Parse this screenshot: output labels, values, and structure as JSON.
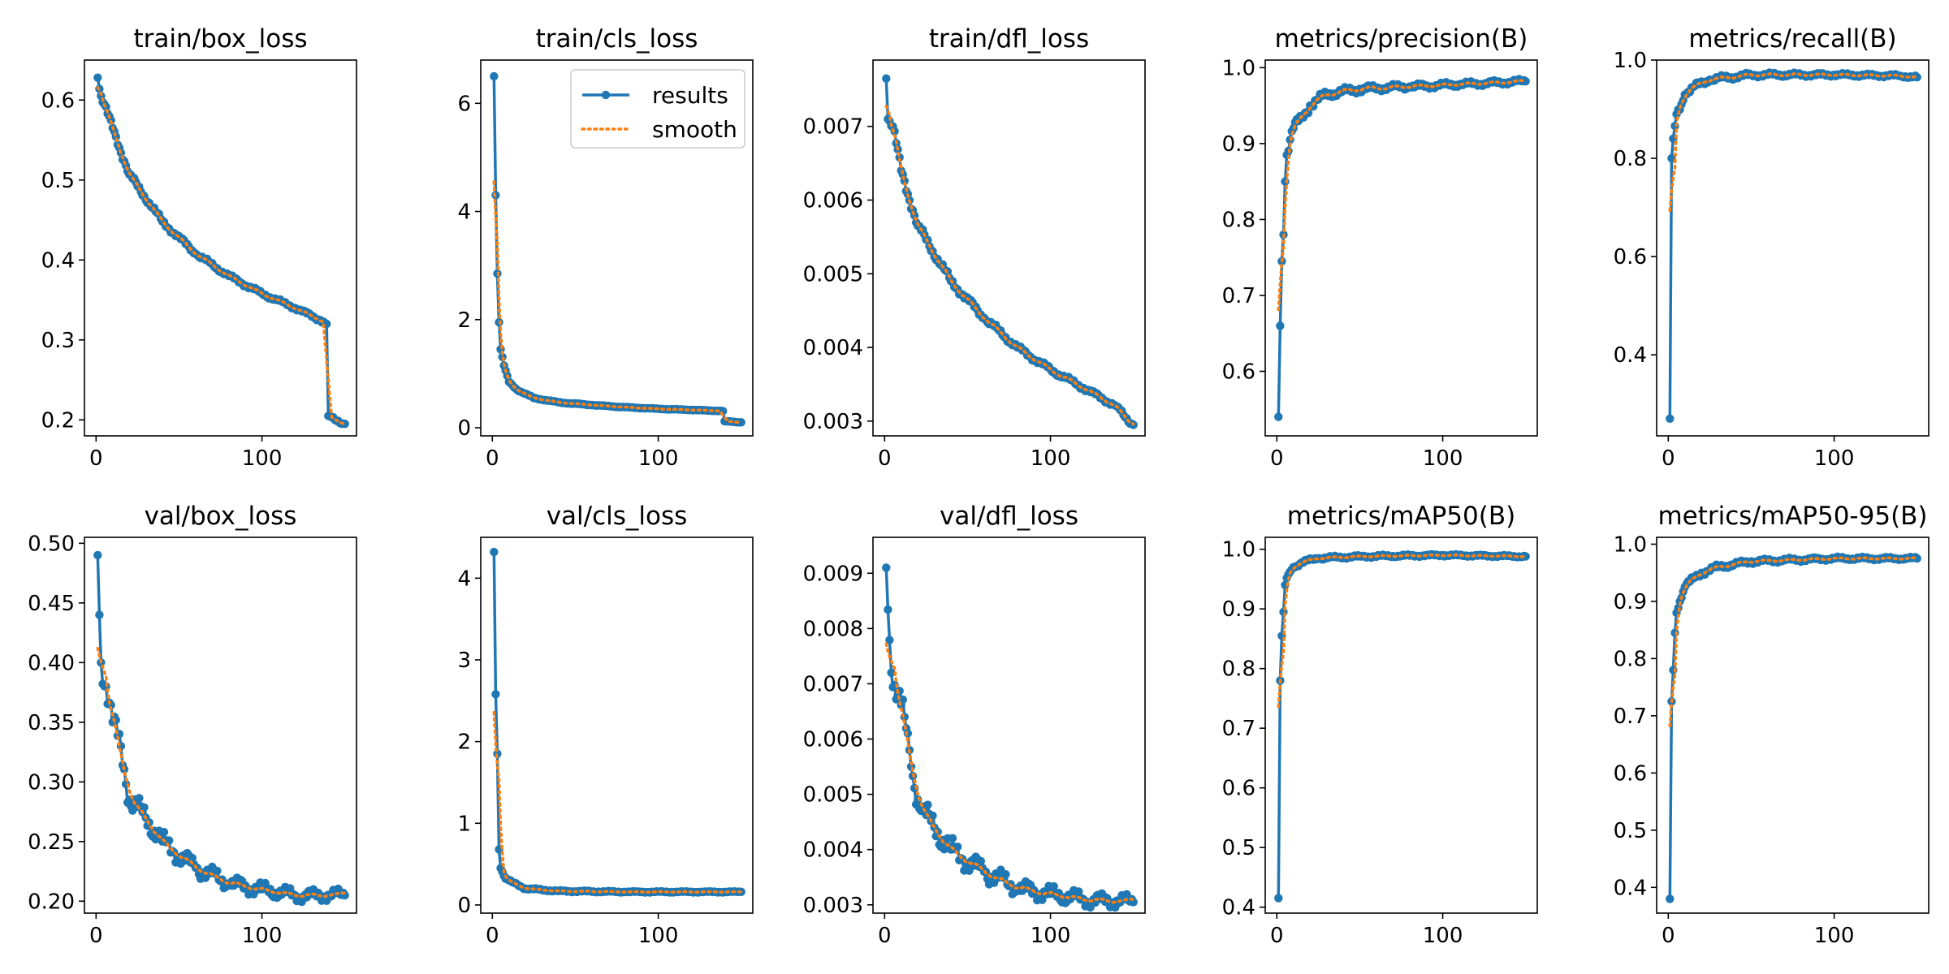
{
  "colors": {
    "results": "#1f77b4",
    "smooth": "#ff7f0e",
    "axis": "#000000",
    "legend_border": "#cccccc"
  },
  "legend": {
    "results_label": "results",
    "smooth_label": "smooth"
  },
  "chart_data": [
    {
      "type": "line",
      "title": "train/box_loss",
      "x_ticks": [
        0,
        100
      ],
      "y_ticks": [
        0.2,
        0.3,
        0.4,
        0.5,
        0.6
      ],
      "y_tick_labels": [
        "0.2",
        "0.3",
        "0.4",
        "0.5",
        "0.6"
      ],
      "xlim": [
        -7,
        157
      ],
      "ylim": [
        0.18,
        0.65
      ],
      "anchors": [
        [
          1,
          0.628
        ],
        [
          3,
          0.605
        ],
        [
          10,
          0.565
        ],
        [
          20,
          0.507
        ],
        [
          40,
          0.448
        ],
        [
          60,
          0.408
        ],
        [
          80,
          0.38
        ],
        [
          100,
          0.358
        ],
        [
          120,
          0.34
        ],
        [
          135,
          0.325
        ],
        [
          139,
          0.32
        ],
        [
          140,
          0.205
        ],
        [
          144,
          0.2
        ],
        [
          150,
          0.195
        ]
      ],
      "noise": 0.004,
      "smooth_lag": 2,
      "legend": false
    },
    {
      "type": "line",
      "title": "train/cls_loss",
      "x_ticks": [
        0,
        100
      ],
      "y_ticks": [
        0,
        2,
        4,
        6
      ],
      "y_tick_labels": [
        "0",
        "2",
        "4",
        "6"
      ],
      "xlim": [
        -7,
        157
      ],
      "ylim": [
        -0.15,
        6.8
      ],
      "anchors": [
        [
          1,
          6.5
        ],
        [
          2,
          4.3
        ],
        [
          3,
          2.85
        ],
        [
          4,
          1.95
        ],
        [
          5,
          1.45
        ],
        [
          7,
          1.15
        ],
        [
          10,
          0.85
        ],
        [
          15,
          0.7
        ],
        [
          25,
          0.55
        ],
        [
          40,
          0.47
        ],
        [
          60,
          0.42
        ],
        [
          80,
          0.38
        ],
        [
          100,
          0.35
        ],
        [
          120,
          0.33
        ],
        [
          139,
          0.31
        ],
        [
          140,
          0.12
        ],
        [
          150,
          0.1
        ]
      ],
      "noise": 0.01,
      "smooth_lag": 2,
      "legend": true
    },
    {
      "type": "line",
      "title": "train/dfl_loss",
      "x_ticks": [
        0,
        100
      ],
      "y_ticks": [
        0.003,
        0.004,
        0.005,
        0.006,
        0.007
      ],
      "y_tick_labels": [
        "0.003",
        "0.004",
        "0.005",
        "0.006",
        "0.007"
      ],
      "xlim": [
        -7,
        157
      ],
      "ylim": [
        0.0028,
        0.0079
      ],
      "anchors": [
        [
          1,
          0.00765
        ],
        [
          2,
          0.0071
        ],
        [
          5,
          0.007
        ],
        [
          10,
          0.0064
        ],
        [
          20,
          0.00565
        ],
        [
          40,
          0.0049
        ],
        [
          60,
          0.0044
        ],
        [
          80,
          0.004
        ],
        [
          100,
          0.0037
        ],
        [
          120,
          0.00345
        ],
        [
          140,
          0.0032
        ],
        [
          145,
          0.00305
        ],
        [
          150,
          0.00295
        ]
      ],
      "noise": 6e-05,
      "smooth_lag": 2,
      "legend": false
    },
    {
      "type": "line",
      "title": "metrics/precision(B)",
      "x_ticks": [
        0,
        100
      ],
      "y_ticks": [
        0.6,
        0.7,
        0.8,
        0.9,
        1.0
      ],
      "y_tick_labels": [
        "0.6",
        "0.7",
        "0.8",
        "0.9",
        "1.0"
      ],
      "xlim": [
        -7,
        157
      ],
      "ylim": [
        0.515,
        1.01
      ],
      "anchors": [
        [
          1,
          0.54
        ],
        [
          2,
          0.66
        ],
        [
          3,
          0.745
        ],
        [
          4,
          0.78
        ],
        [
          5,
          0.85
        ],
        [
          6,
          0.885
        ],
        [
          8,
          0.905
        ],
        [
          10,
          0.92
        ],
        [
          15,
          0.935
        ],
        [
          20,
          0.95
        ],
        [
          30,
          0.965
        ],
        [
          50,
          0.972
        ],
        [
          80,
          0.975
        ],
        [
          110,
          0.978
        ],
        [
          150,
          0.982
        ]
      ],
      "noise": 0.006,
      "smooth_lag": 3,
      "legend": false
    },
    {
      "type": "line",
      "title": "metrics/recall(B)",
      "x_ticks": [
        0,
        100
      ],
      "y_ticks": [
        0.4,
        0.6,
        0.8,
        1.0
      ],
      "y_tick_labels": [
        "0.4",
        "0.6",
        "0.8",
        "1.0"
      ],
      "xlim": [
        -7,
        157
      ],
      "ylim": [
        0.235,
        1.0
      ],
      "anchors": [
        [
          1,
          0.27
        ],
        [
          2,
          0.8
        ],
        [
          3,
          0.84
        ],
        [
          5,
          0.89
        ],
        [
          8,
          0.91
        ],
        [
          10,
          0.93
        ],
        [
          15,
          0.945
        ],
        [
          25,
          0.96
        ],
        [
          50,
          0.97
        ],
        [
          100,
          0.97
        ],
        [
          140,
          0.968
        ],
        [
          150,
          0.965
        ]
      ],
      "noise": 0.006,
      "smooth_lag": 3,
      "legend": false
    },
    {
      "type": "line",
      "title": "val/box_loss",
      "x_ticks": [
        0,
        100
      ],
      "y_ticks": [
        0.2,
        0.25,
        0.3,
        0.35,
        0.4,
        0.45,
        0.5
      ],
      "y_tick_labels": [
        "0.20",
        "0.25",
        "0.30",
        "0.35",
        "0.40",
        "0.45",
        "0.50"
      ],
      "xlim": [
        -7,
        157
      ],
      "ylim": [
        0.19,
        0.505
      ],
      "anchors": [
        [
          1,
          0.49
        ],
        [
          3,
          0.4
        ],
        [
          6,
          0.38
        ],
        [
          10,
          0.35
        ],
        [
          15,
          0.33
        ],
        [
          20,
          0.285
        ],
        [
          30,
          0.27
        ],
        [
          40,
          0.25
        ],
        [
          60,
          0.228
        ],
        [
          80,
          0.215
        ],
        [
          100,
          0.21
        ],
        [
          120,
          0.205
        ],
        [
          150,
          0.205
        ]
      ],
      "noise": 0.01,
      "smooth_lag": 5,
      "legend": false
    },
    {
      "type": "line",
      "title": "val/cls_loss",
      "x_ticks": [
        0,
        100
      ],
      "y_ticks": [
        0,
        1,
        2,
        3,
        4
      ],
      "y_tick_labels": [
        "0",
        "1",
        "2",
        "3",
        "4"
      ],
      "xlim": [
        -7,
        157
      ],
      "ylim": [
        -0.1,
        4.5
      ],
      "anchors": [
        [
          1,
          4.32
        ],
        [
          2,
          2.58
        ],
        [
          3,
          1.85
        ],
        [
          4,
          0.68
        ],
        [
          5,
          0.45
        ],
        [
          8,
          0.32
        ],
        [
          12,
          0.28
        ],
        [
          20,
          0.2
        ],
        [
          40,
          0.17
        ],
        [
          80,
          0.16
        ],
        [
          150,
          0.16
        ]
      ],
      "noise": 0.012,
      "smooth_lag": 3,
      "legend": false
    },
    {
      "type": "line",
      "title": "val/dfl_loss",
      "x_ticks": [
        0,
        100
      ],
      "y_ticks": [
        0.003,
        0.004,
        0.005,
        0.006,
        0.007,
        0.008,
        0.009
      ],
      "y_tick_labels": [
        "0.003",
        "0.004",
        "0.005",
        "0.006",
        "0.007",
        "0.008",
        "0.009"
      ],
      "xlim": [
        -7,
        157
      ],
      "ylim": [
        0.00285,
        0.00965
      ],
      "anchors": [
        [
          1,
          0.0091
        ],
        [
          4,
          0.0072
        ],
        [
          8,
          0.0068
        ],
        [
          12,
          0.0064
        ],
        [
          16,
          0.0055
        ],
        [
          22,
          0.0047
        ],
        [
          30,
          0.0044
        ],
        [
          40,
          0.004
        ],
        [
          60,
          0.0036
        ],
        [
          80,
          0.0033
        ],
        [
          100,
          0.0032
        ],
        [
          120,
          0.0031
        ],
        [
          150,
          0.00305
        ]
      ],
      "noise": 0.00025,
      "smooth_lag": 5,
      "legend": false
    },
    {
      "type": "line",
      "title": "metrics/mAP50(B)",
      "x_ticks": [
        0,
        100
      ],
      "y_ticks": [
        0.4,
        0.5,
        0.6,
        0.7,
        0.8,
        0.9,
        1.0
      ],
      "y_tick_labels": [
        "0.4",
        "0.5",
        "0.6",
        "0.7",
        "0.8",
        "0.9",
        "1.0"
      ],
      "xlim": [
        -7,
        157
      ],
      "ylim": [
        0.39,
        1.02
      ],
      "anchors": [
        [
          1,
          0.415
        ],
        [
          2,
          0.78
        ],
        [
          3,
          0.855
        ],
        [
          4,
          0.895
        ],
        [
          5,
          0.94
        ],
        [
          7,
          0.958
        ],
        [
          10,
          0.97
        ],
        [
          15,
          0.978
        ],
        [
          25,
          0.985
        ],
        [
          50,
          0.988
        ],
        [
          100,
          0.99
        ],
        [
          150,
          0.988
        ]
      ],
      "noise": 0.003,
      "smooth_lag": 3,
      "legend": false
    },
    {
      "type": "line",
      "title": "metrics/mAP50-95(B)",
      "x_ticks": [
        0,
        100
      ],
      "y_ticks": [
        0.4,
        0.5,
        0.6,
        0.7,
        0.8,
        0.9,
        1.0
      ],
      "y_tick_labels": [
        "0.4",
        "0.5",
        "0.6",
        "0.7",
        "0.8",
        "0.9",
        "1.0"
      ],
      "xlim": [
        -7,
        157
      ],
      "ylim": [
        0.355,
        1.012
      ],
      "anchors": [
        [
          1,
          0.38
        ],
        [
          2,
          0.725
        ],
        [
          3,
          0.78
        ],
        [
          4,
          0.845
        ],
        [
          5,
          0.88
        ],
        [
          7,
          0.9
        ],
        [
          10,
          0.925
        ],
        [
          15,
          0.94
        ],
        [
          20,
          0.95
        ],
        [
          30,
          0.96
        ],
        [
          50,
          0.97
        ],
        [
          100,
          0.975
        ],
        [
          150,
          0.975
        ]
      ],
      "noise": 0.005,
      "smooth_lag": 3,
      "legend": false
    }
  ]
}
